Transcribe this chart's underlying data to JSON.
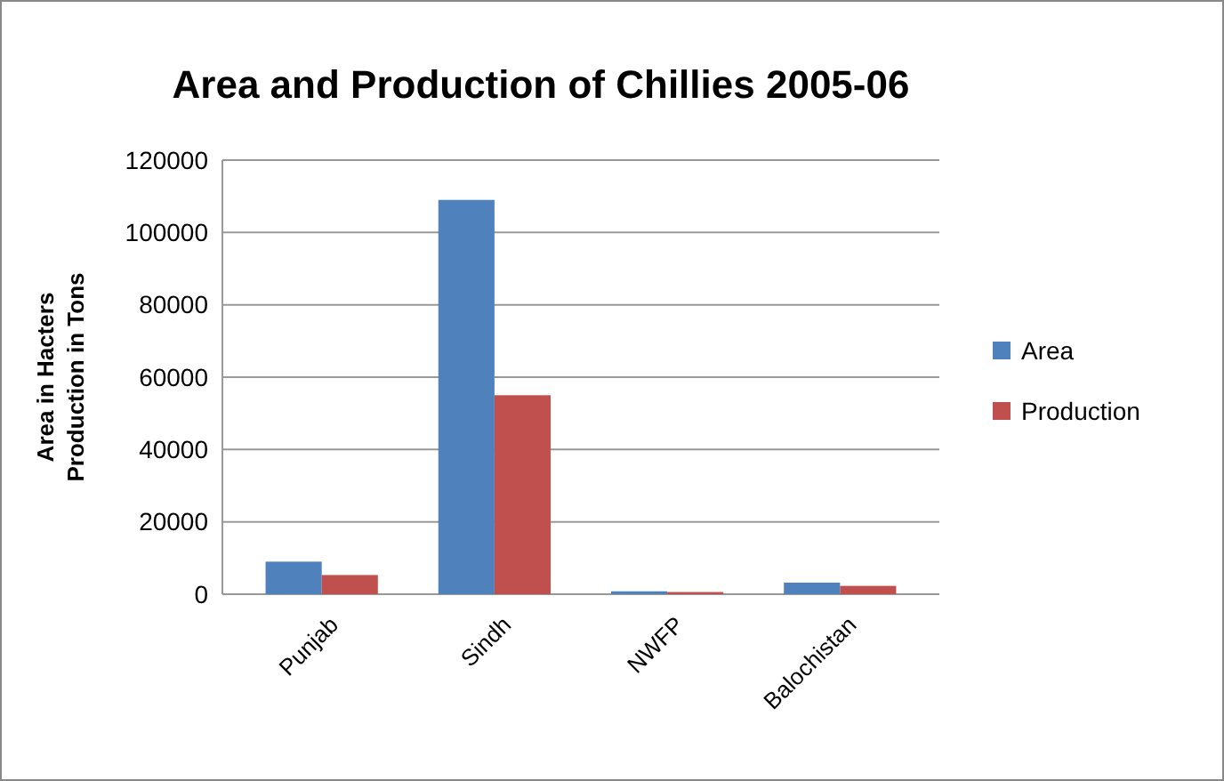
{
  "chart_data": {
    "type": "bar",
    "title": "Area and Production of Chillies 2005-06",
    "ylabel": "Area in Hacters\nProduction in  Tons",
    "categories": [
      "Punjab",
      "Sindh",
      "NWFP",
      "Balochistan"
    ],
    "series": [
      {
        "name": "Area",
        "color": "#4f81bd",
        "values": [
          9000,
          109000,
          800,
          3200
        ]
      },
      {
        "name": "Production",
        "color": "#c0504d",
        "values": [
          5300,
          55000,
          600,
          2300
        ]
      }
    ],
    "ylim": [
      0,
      120000
    ],
    "yticks": [
      0,
      20000,
      40000,
      60000,
      80000,
      100000,
      120000
    ],
    "grid": "y",
    "legend": "right"
  }
}
